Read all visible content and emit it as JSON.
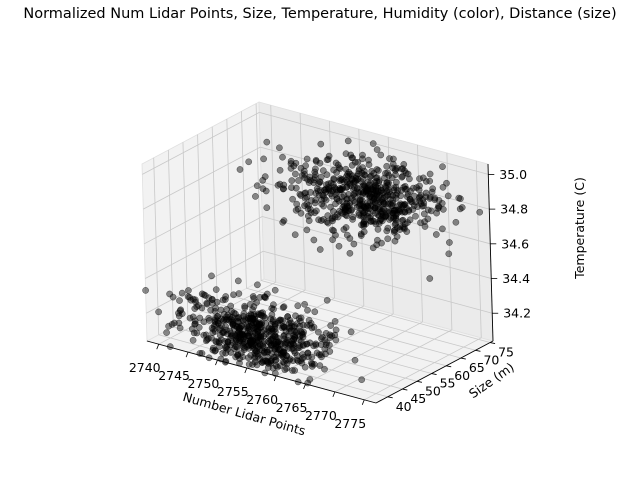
{
  "chart_data": {
    "type": "scatter",
    "projection": "3d",
    "title": "Normalized Num Lidar Points, Size, Temperature, Humidity (color), Distance (size)",
    "xlabel": "Number Lidar Points",
    "ylabel": "Size (m)",
    "zlabel": "Temperature (C)",
    "xlim": [
      2738,
      2777
    ],
    "ylim": [
      36,
      76
    ],
    "zlim": [
      34.04,
      35.06
    ],
    "xticks": [
      "2740",
      "2745",
      "2750",
      "2755",
      "2760",
      "2765",
      "2770",
      "2775"
    ],
    "yticks": [
      "40",
      "45",
      "50",
      "55",
      "60",
      "65",
      "70",
      "75"
    ],
    "zticks": [
      "34.2",
      "34.4",
      "34.6",
      "34.8",
      "35.0"
    ],
    "grid": true,
    "marker_color": "#000000",
    "marker_opacity": 0.45,
    "clusters": [
      {
        "approx_points": 600,
        "center": {
          "x": 2755,
          "y": 38,
          "z": 34.2
        },
        "spread": {
          "x": 6,
          "y": 6,
          "z": 0.09
        },
        "sample": [
          {
            "x": 2750,
            "y": 38,
            "z": 34.18
          },
          {
            "x": 2754,
            "y": 41,
            "z": 34.22
          },
          {
            "x": 2758,
            "y": 37,
            "z": 34.15
          },
          {
            "x": 2752,
            "y": 43,
            "z": 34.25
          },
          {
            "x": 2756,
            "y": 39,
            "z": 34.2
          }
        ]
      },
      {
        "approx_points": 600,
        "center": {
          "x": 2760,
          "y": 68,
          "z": 34.78
        },
        "spread": {
          "x": 6,
          "y": 6,
          "z": 0.09
        },
        "sample": [
          {
            "x": 2758,
            "y": 66,
            "z": 34.8
          },
          {
            "x": 2762,
            "y": 70,
            "z": 34.75
          },
          {
            "x": 2756,
            "y": 68,
            "z": 34.85
          },
          {
            "x": 2764,
            "y": 65,
            "z": 34.72
          },
          {
            "x": 2760,
            "y": 71,
            "z": 34.78
          }
        ]
      }
    ]
  }
}
